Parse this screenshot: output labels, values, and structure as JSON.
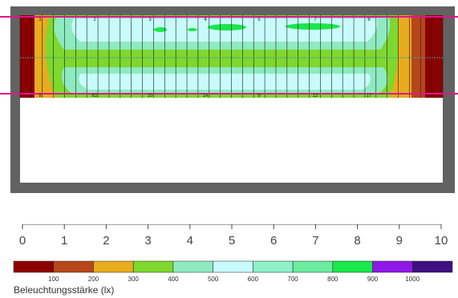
{
  "legend": {
    "title": "Beleuchtungsstärke (lx)",
    "ticks": [
      "100",
      "200",
      "300",
      "400",
      "500",
      "600",
      "700",
      "800",
      "900",
      "1000"
    ],
    "colors": [
      "#8b0000",
      "#b5471a",
      "#e8ac1f",
      "#7ed82e",
      "#8eeac0",
      "#c8fcfc",
      "#8ff0c8",
      "#6aeba0",
      "#18e84a",
      "#8f18e6",
      "#3f0f7f"
    ]
  },
  "distance_axis": {
    "ticks": [
      "0",
      "1",
      "2",
      "3",
      "4",
      "5",
      "6",
      "7",
      "8",
      "9",
      "10"
    ]
  },
  "fixture_labels": {
    "top": [
      "1",
      "2",
      "3",
      "4",
      "5",
      "7",
      "8"
    ],
    "bottom": [
      "8",
      "62",
      "10",
      "14",
      "9",
      "12",
      "17"
    ]
  },
  "room": {
    "wall_color": "#626262",
    "floor_color": "#ffffff",
    "line_color": "#e0148c"
  }
}
